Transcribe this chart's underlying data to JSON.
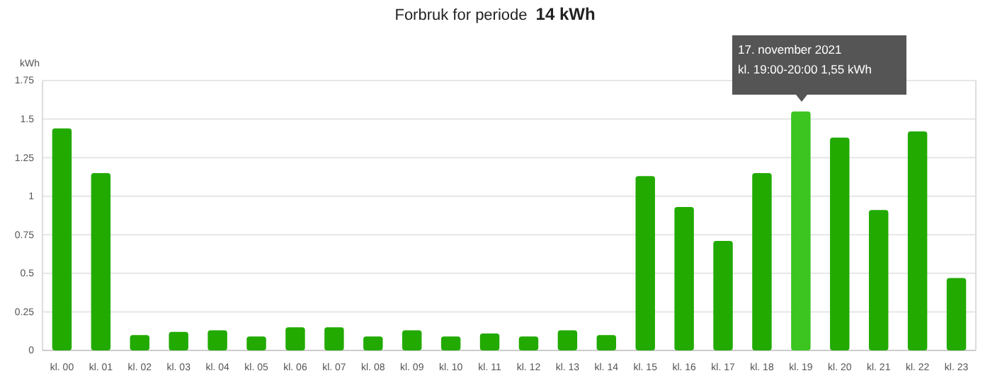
{
  "chart_data": {
    "type": "bar",
    "title": "Forbruk for periode",
    "subtitle": "14 kWh",
    "ylabel": "kWh",
    "categories": [
      "kl. 00",
      "kl. 01",
      "kl. 02",
      "kl. 03",
      "kl. 04",
      "kl. 05",
      "kl. 06",
      "kl. 07",
      "kl. 08",
      "kl. 09",
      "kl. 10",
      "kl. 11",
      "kl. 12",
      "kl. 13",
      "kl. 14",
      "kl. 15",
      "kl. 16",
      "kl. 17",
      "kl. 18",
      "kl. 19",
      "kl. 20",
      "kl. 21",
      "kl. 22",
      "kl. 23"
    ],
    "values": [
      1.44,
      1.15,
      0.1,
      0.12,
      0.13,
      0.09,
      0.15,
      0.15,
      0.09,
      0.13,
      0.09,
      0.11,
      0.09,
      0.13,
      0.1,
      1.13,
      0.93,
      0.71,
      1.15,
      1.55,
      1.38,
      0.91,
      1.42,
      0.47
    ],
    "colors": [
      "#22aa00",
      "#22aa00",
      "#22aa00",
      "#22aa00",
      "#22aa00",
      "#22aa00",
      "#22aa00",
      "#22aa00",
      "#22aa00",
      "#22aa00",
      "#22aa00",
      "#22aa00",
      "#22aa00",
      "#22aa00",
      "#22aa00",
      "#22aa00",
      "#22aa00",
      "#22aa00",
      "#22aa00",
      "#3cc421",
      "#22aa00",
      "#22aa00",
      "#22aa00",
      "#22aa00"
    ],
    "ylim": [
      0,
      1.75
    ],
    "yticks": [
      0,
      0.25,
      0.5,
      0.75,
      1,
      1.25,
      1.5,
      1.75
    ],
    "grid": "y",
    "annotations": [
      "17. november 2021",
      "kl. 19:00-20:00 1,55 kWh"
    ]
  }
}
